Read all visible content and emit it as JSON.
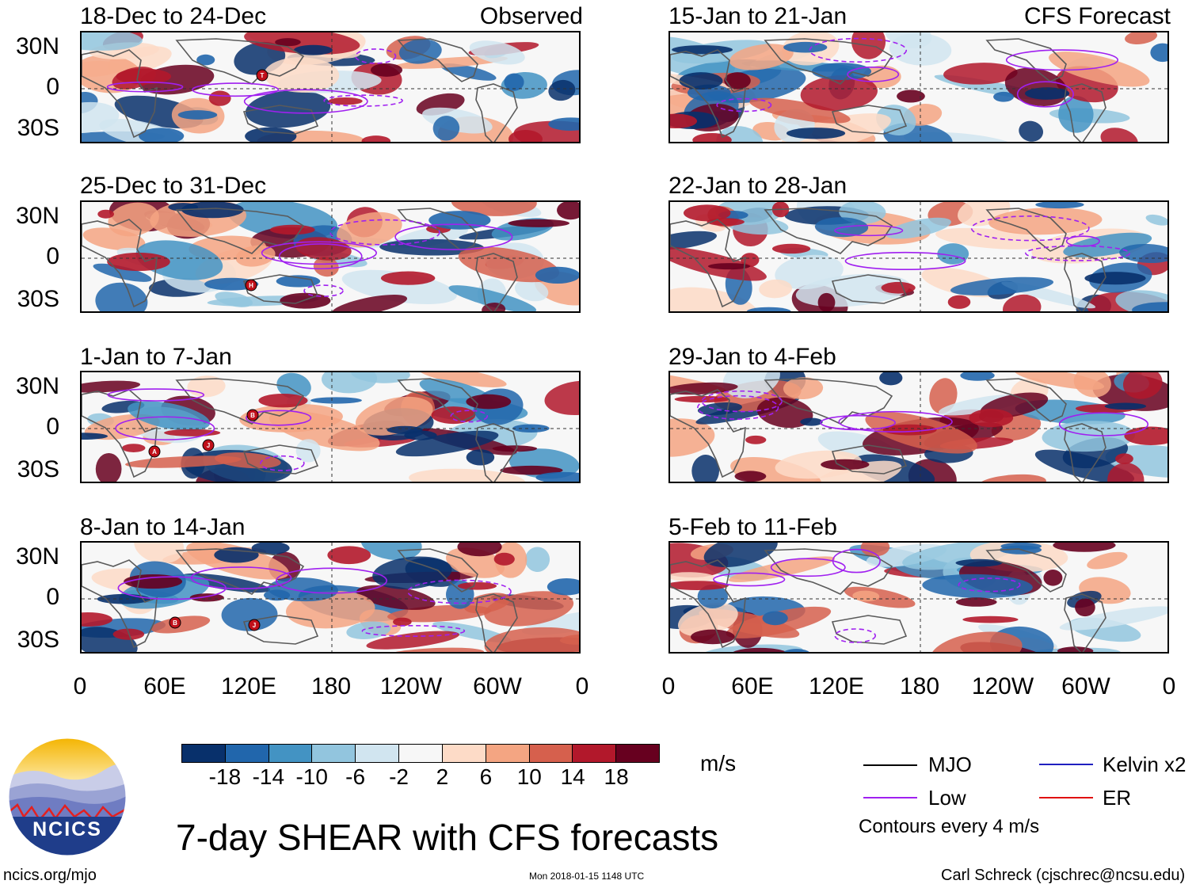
{
  "observed_label": "Observed",
  "forecast_label": "CFS Forecast",
  "panels": {
    "left": [
      "18-Dec to 24-Dec",
      "25-Dec to 31-Dec",
      "1-Jan to 7-Jan",
      "8-Jan to 14-Jan"
    ],
    "right": [
      "15-Jan to 21-Jan",
      "22-Jan to 28-Jan",
      "29-Jan to 4-Feb",
      "5-Feb to 11-Feb"
    ]
  },
  "lat_labels": [
    "30N",
    "0",
    "30S"
  ],
  "lon_labels": [
    "0",
    "60E",
    "120E",
    "180",
    "120W",
    "60W",
    "0"
  ],
  "colorbar": {
    "ticks": [
      "-18",
      "-14",
      "-10",
      "-6",
      "-2",
      "2",
      "6",
      "10",
      "14",
      "18"
    ],
    "colors": [
      "#08306b",
      "#2166ac",
      "#4393c3",
      "#92c5de",
      "#d1e5f0",
      "#f7f7f7",
      "#fddbc7",
      "#f4a582",
      "#d6604d",
      "#b2182b",
      "#67001f"
    ],
    "unit": "m/s"
  },
  "legend": {
    "mjo": "MJO",
    "low": "Low",
    "kelvin": "Kelvin x2",
    "er": "ER",
    "note": "Contours every 4 m/s",
    "colors": {
      "mjo": "#000000",
      "low": "#a020f0",
      "kelvin": "#2020c0",
      "er": "#e01010"
    }
  },
  "logo_text": "NCICS",
  "main_title": "7-day SHEAR with CFS forecasts",
  "footer": {
    "url": "ncics.org/mjo",
    "timestamp": "Mon 2018-01-15 1148 UTC",
    "credit": "Carl Schreck (cjschrec@ncsu.edu)"
  },
  "storms": {
    "p0": [
      "T"
    ],
    "p1": [
      "H"
    ],
    "p2": [
      "A",
      "J",
      "B"
    ],
    "p3": [
      "B",
      "J"
    ]
  }
}
